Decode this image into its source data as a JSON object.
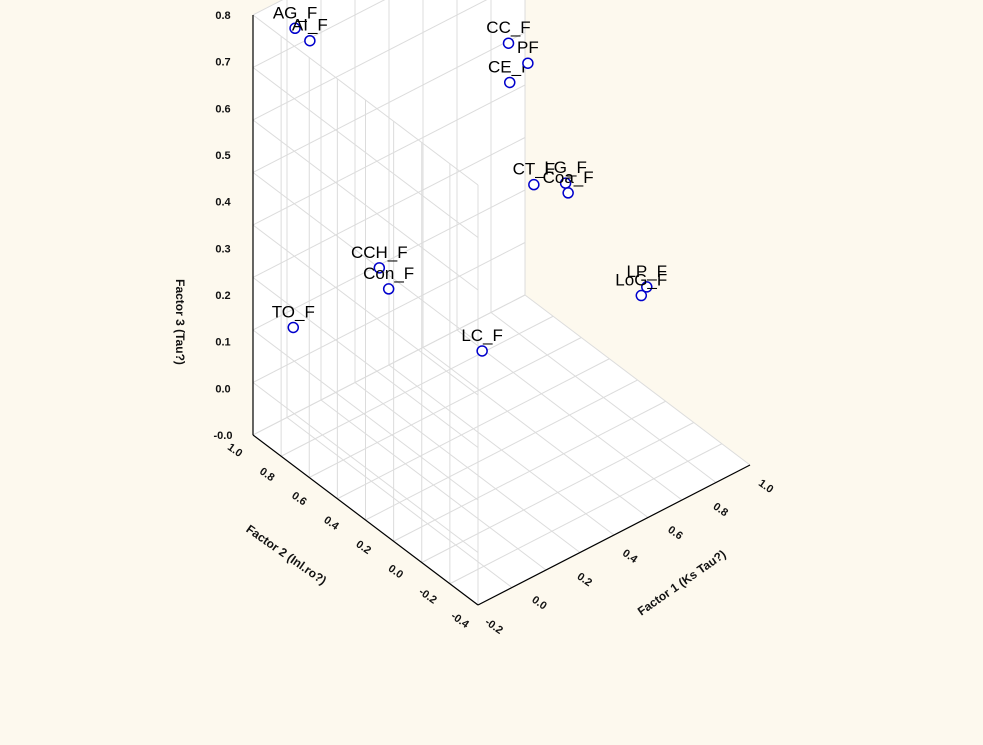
{
  "chart_data": {
    "type": "scatter",
    "projection": "3d",
    "title": "",
    "xlabel": "Factor 1 (Ks Tau?)",
    "ylabel": "Factor 2 (Inl.ro?)",
    "zlabel": "Factor 3 (Tau?)",
    "x_ticks": [
      "-0.2",
      "0.0",
      "0.2",
      "0.4",
      "0.6",
      "0.8",
      "1.0"
    ],
    "y_ticks": [
      "-0.4",
      "-0.2",
      "0.0",
      "0.2",
      "0.4",
      "0.6",
      "0.8",
      "1.0"
    ],
    "z_ticks": [
      "-0.0",
      "0.0",
      "0.1",
      "0.2",
      "0.3",
      "0.4",
      "0.5",
      "0.6",
      "0.7",
      "0.8"
    ],
    "grid": true,
    "marker_color": "#0000cc",
    "points": [
      {
        "label": "AG_F",
        "x": -0.05,
        "y": 0.95,
        "z": 0.75
      },
      {
        "label": "AI_F",
        "x": -0.02,
        "y": 0.9,
        "z": 0.73
      },
      {
        "label": "CC_F",
        "x": 0.75,
        "y": 0.75,
        "z": 0.58
      },
      {
        "label": "CE_F",
        "x": 0.72,
        "y": 0.7,
        "z": 0.52
      },
      {
        "label": "PF",
        "x": 0.8,
        "y": 0.7,
        "z": 0.54
      },
      {
        "label": "CT_F",
        "x": 0.72,
        "y": 0.55,
        "z": 0.35
      },
      {
        "label": "LG_F",
        "x": 0.86,
        "y": 0.55,
        "z": 0.32
      },
      {
        "label": "Coa_F",
        "x": 0.85,
        "y": 0.52,
        "z": 0.31
      },
      {
        "label": "CCH_F",
        "x": 0.18,
        "y": 0.75,
        "z": 0.26
      },
      {
        "label": "Con_F",
        "x": 0.2,
        "y": 0.72,
        "z": 0.22
      },
      {
        "label": "TO_F",
        "x": -0.15,
        "y": 0.82,
        "z": 0.2
      },
      {
        "label": "LC_F",
        "x": 0.35,
        "y": 0.35,
        "z": 0.15
      },
      {
        "label": "LP_F",
        "x": 0.97,
        "y": 0.2,
        "z": 0.17
      },
      {
        "label": "LoG_F",
        "x": 0.96,
        "y": 0.22,
        "z": 0.15
      }
    ]
  }
}
